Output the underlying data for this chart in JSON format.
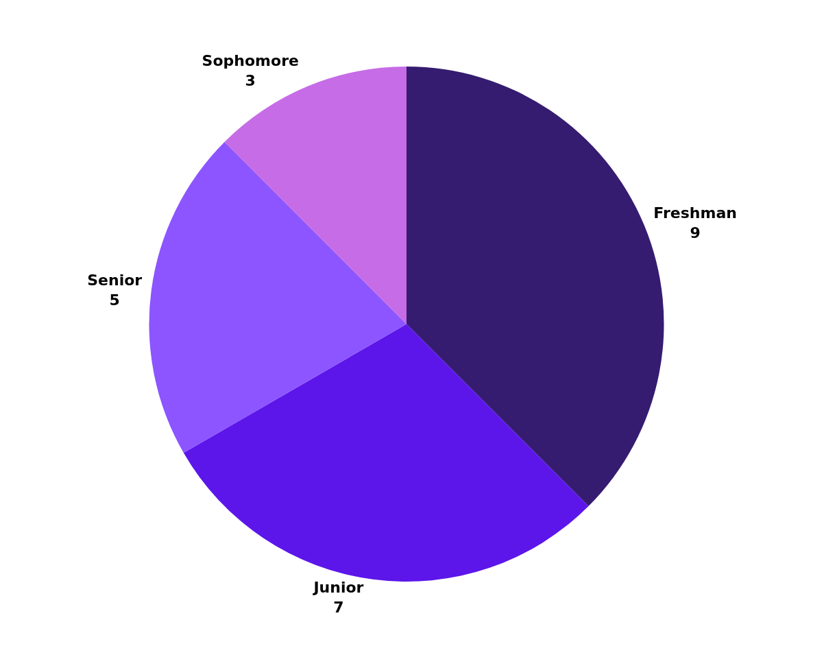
{
  "chart_data": {
    "type": "pie",
    "categories": [
      "Freshman",
      "Junior",
      "Senior",
      "Sophomore"
    ],
    "values": [
      9,
      7,
      5,
      3
    ],
    "colors": [
      "#351c70",
      "#5c16ea",
      "#8c55ff",
      "#c66ce6"
    ],
    "data_labels": true,
    "legend": false
  }
}
